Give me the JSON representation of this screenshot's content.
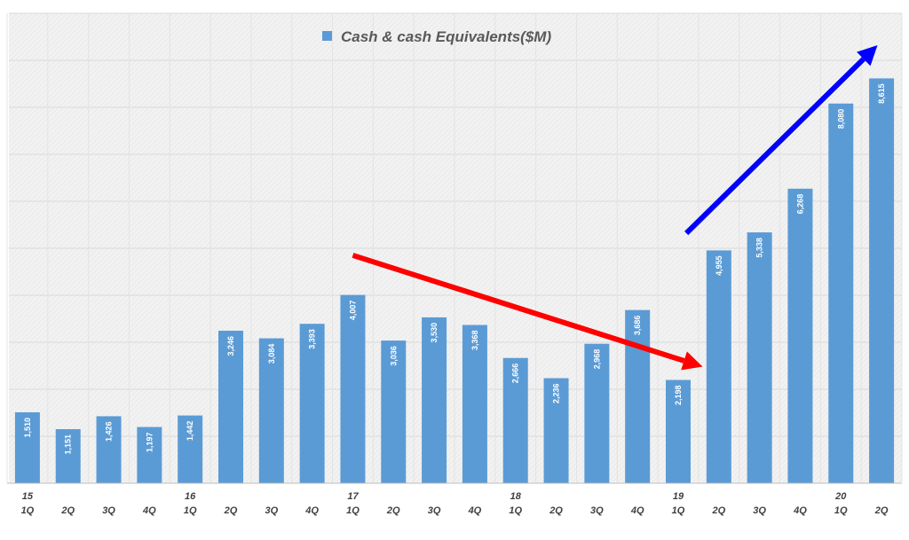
{
  "chart_data": {
    "type": "bar",
    "legend": {
      "label": "Cash & cash Equivalents($M)",
      "position": "top-center",
      "color": "#5B9BD5"
    },
    "categories": [
      "1Q",
      "2Q",
      "3Q",
      "4Q",
      "1Q",
      "2Q",
      "3Q",
      "4Q",
      "1Q",
      "2Q",
      "3Q",
      "4Q",
      "1Q",
      "2Q",
      "3Q",
      "4Q",
      "1Q",
      "2Q",
      "3Q",
      "4Q",
      "1Q",
      "2Q"
    ],
    "year_labels": [
      "15",
      "",
      "",
      "",
      "16",
      "",
      "",
      "",
      "17",
      "",
      "",
      "",
      "18",
      "",
      "",
      "",
      "19",
      "",
      "",
      "",
      "20",
      ""
    ],
    "series": [
      {
        "name": "Cash & cash Equivalents($M)",
        "values": [
          1510,
          1151,
          1426,
          1197,
          1442,
          3246,
          3084,
          3393,
          4007,
          3036,
          3530,
          3368,
          2666,
          2236,
          2968,
          3686,
          2198,
          4955,
          5338,
          6268,
          8080,
          8615
        ],
        "value_labels": [
          "1,510",
          "1,151",
          "1,426",
          "1,197",
          "1,442",
          "3,246",
          "3,084",
          "3,393",
          "4,007",
          "3,036",
          "3,530",
          "3,368",
          "2,666",
          "2,236",
          "2,968",
          "3,686",
          "2,198",
          "4,955",
          "5,338",
          "6,268",
          "8,080",
          "8,615"
        ],
        "color": "#5B9BD5"
      }
    ],
    "ylim": [
      0,
      10000
    ],
    "grid": true,
    "annotations": [
      {
        "kind": "arrow",
        "color": "#FF0000",
        "from": {
          "x_index": 8,
          "y": 4850
        },
        "to": {
          "x_index": 16.6,
          "y": 2480
        }
      },
      {
        "kind": "arrow",
        "color": "#0000FF",
        "from": {
          "x_index": 16.2,
          "y": 5320
        },
        "to": {
          "x_index": 20.9,
          "y": 9320
        }
      }
    ]
  }
}
